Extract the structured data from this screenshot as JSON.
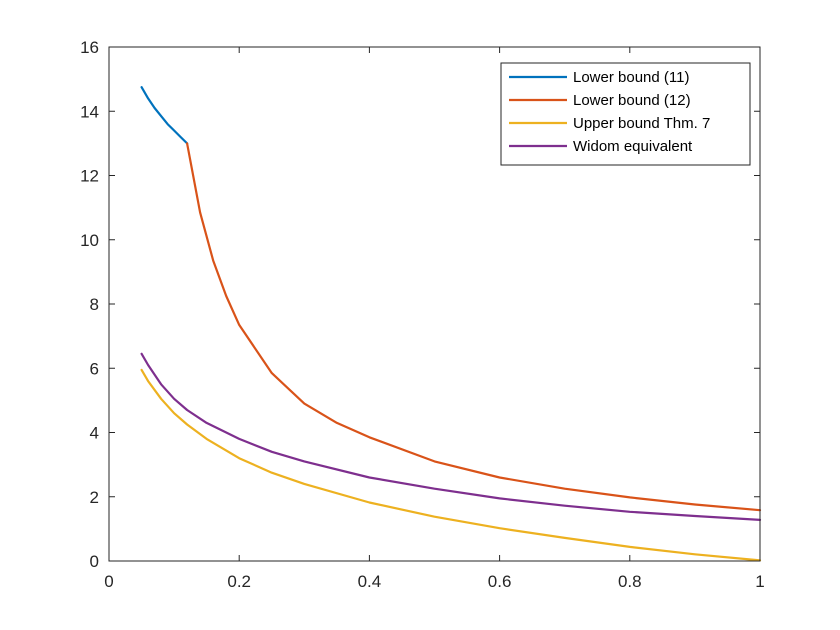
{
  "chart_data": {
    "type": "line",
    "title": "",
    "xlabel": "",
    "ylabel": "",
    "xlim": [
      0,
      1
    ],
    "ylim": [
      0,
      16
    ],
    "xticks": [
      0,
      0.2,
      0.4,
      0.6,
      0.8,
      1
    ],
    "xtick_labels": [
      "0",
      "0.2",
      "0.4",
      "0.6",
      "0.8",
      "1"
    ],
    "yticks": [
      0,
      2,
      4,
      6,
      8,
      10,
      12,
      14,
      16
    ],
    "ytick_labels": [
      "0",
      "2",
      "4",
      "6",
      "8",
      "10",
      "12",
      "14",
      "16"
    ],
    "grid": false,
    "legend_position": "top-right",
    "series": [
      {
        "name": "Lower bound (11)",
        "color": "#0072BD",
        "x": [
          0.05,
          0.06,
          0.07,
          0.08,
          0.09,
          0.1,
          0.11,
          0.12
        ],
        "y": [
          14.75,
          14.4,
          14.1,
          13.85,
          13.6,
          13.4,
          13.2,
          13.0
        ]
      },
      {
        "name": "Lower bound (12)",
        "color": "#D95319",
        "x": [
          0.12,
          0.14,
          0.16,
          0.18,
          0.2,
          0.25,
          0.3,
          0.35,
          0.4,
          0.5,
          0.6,
          0.7,
          0.8,
          0.9,
          1.0
        ],
        "y": [
          13.0,
          10.85,
          9.35,
          8.25,
          7.35,
          5.85,
          4.9,
          4.3,
          3.85,
          3.1,
          2.6,
          2.25,
          1.98,
          1.76,
          1.58
        ]
      },
      {
        "name": "Upper bound Thm. 7",
        "color": "#EDB120",
        "x": [
          0.05,
          0.06,
          0.08,
          0.1,
          0.12,
          0.15,
          0.2,
          0.25,
          0.3,
          0.4,
          0.5,
          0.6,
          0.7,
          0.8,
          0.9,
          1.0
        ],
        "y": [
          5.95,
          5.6,
          5.05,
          4.6,
          4.25,
          3.8,
          3.2,
          2.75,
          2.4,
          1.82,
          1.38,
          1.02,
          0.72,
          0.44,
          0.21,
          0.02
        ]
      },
      {
        "name": "Widom equivalent",
        "color": "#7E2F8E",
        "x": [
          0.05,
          0.06,
          0.08,
          0.1,
          0.12,
          0.15,
          0.2,
          0.25,
          0.3,
          0.4,
          0.5,
          0.6,
          0.7,
          0.8,
          0.9,
          1.0
        ],
        "y": [
          6.45,
          6.1,
          5.5,
          5.05,
          4.7,
          4.3,
          3.8,
          3.4,
          3.1,
          2.6,
          2.25,
          1.95,
          1.72,
          1.53,
          1.4,
          1.28
        ]
      }
    ]
  }
}
